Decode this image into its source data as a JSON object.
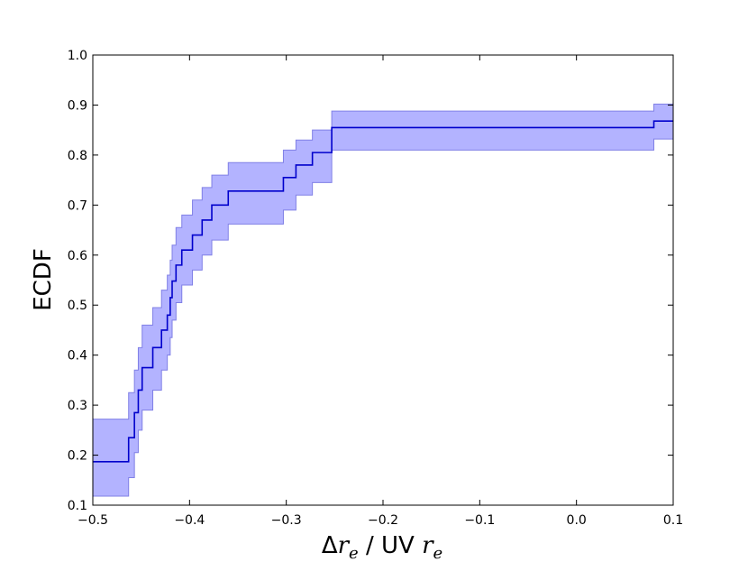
{
  "chart_data": {
    "type": "line",
    "title": "",
    "xlabel": {
      "prefix": "Δ",
      "var1": "r",
      "sub1": "e",
      "mid": " / UV ",
      "var2": "r",
      "sub2": "e"
    },
    "ylabel": "ECDF",
    "xlim": [
      -0.5,
      0.1
    ],
    "ylim": [
      0.1,
      1.0
    ],
    "xticks": [
      -0.5,
      -0.4,
      -0.3,
      -0.2,
      -0.1,
      0.0,
      0.1
    ],
    "xtick_labels": [
      "−0.5",
      "−0.4",
      "−0.3",
      "−0.2",
      "−0.1",
      "0.0",
      "0.1"
    ],
    "yticks": [
      0.1,
      0.2,
      0.3,
      0.4,
      0.5,
      0.6,
      0.7,
      0.8,
      0.9,
      1.0
    ],
    "ytick_labels": [
      "0.1",
      "0.2",
      "0.3",
      "0.4",
      "0.5",
      "0.6",
      "0.7",
      "0.8",
      "0.9",
      "1.0"
    ],
    "grid": false,
    "legend": "none",
    "colors": {
      "line": "#0000cc",
      "band_fill": "#b3b3ff",
      "band_edge": "#8080e6"
    },
    "series": [
      {
        "kind": "step",
        "x": [
          -0.5,
          -0.463,
          -0.457,
          -0.453,
          -0.449,
          -0.438,
          -0.429,
          -0.423,
          -0.42,
          -0.418,
          -0.414,
          -0.408,
          -0.397,
          -0.387,
          -0.377,
          -0.36,
          -0.303,
          -0.29,
          -0.273,
          -0.253,
          0.08,
          0.1
        ],
        "y": [
          0.187,
          0.235,
          0.285,
          0.33,
          0.375,
          0.415,
          0.45,
          0.48,
          0.515,
          0.548,
          0.58,
          0.61,
          0.64,
          0.67,
          0.7,
          0.728,
          0.755,
          0.78,
          0.805,
          0.855,
          0.868,
          0.868
        ]
      },
      {
        "kind": "band",
        "x": [
          -0.5,
          -0.463,
          -0.457,
          -0.453,
          -0.449,
          -0.438,
          -0.429,
          -0.423,
          -0.42,
          -0.418,
          -0.414,
          -0.408,
          -0.397,
          -0.387,
          -0.377,
          -0.36,
          -0.303,
          -0.29,
          -0.273,
          -0.253,
          0.08,
          0.1
        ],
        "upper": [
          0.272,
          0.325,
          0.37,
          0.415,
          0.46,
          0.495,
          0.53,
          0.56,
          0.59,
          0.62,
          0.655,
          0.68,
          0.71,
          0.735,
          0.76,
          0.785,
          0.81,
          0.83,
          0.85,
          0.888,
          0.902,
          0.902
        ],
        "lower": [
          0.118,
          0.155,
          0.205,
          0.25,
          0.29,
          0.33,
          0.37,
          0.4,
          0.435,
          0.47,
          0.505,
          0.54,
          0.57,
          0.6,
          0.63,
          0.662,
          0.69,
          0.72,
          0.745,
          0.81,
          0.832,
          0.832
        ]
      }
    ]
  }
}
